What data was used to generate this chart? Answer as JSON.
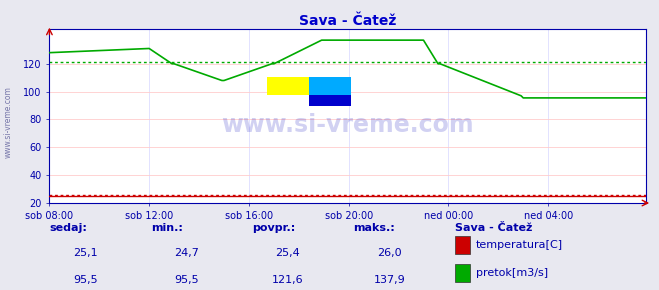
{
  "title": "Sava - Čatež",
  "bg_color": "#e8e8f0",
  "plot_bg_color": "#ffffff",
  "grid_color_h": "#ffcccc",
  "grid_color_v": "#ddddff",
  "ylim": [
    20,
    145
  ],
  "yticks": [
    20,
    40,
    60,
    80,
    100,
    120
  ],
  "xtick_labels": [
    "sob 08:00",
    "sob 12:00",
    "sob 16:00",
    "sob 20:00",
    "ned 00:00",
    "ned 04:00"
  ],
  "xtick_positions": [
    0,
    48,
    96,
    144,
    192,
    240
  ],
  "total_points": 288,
  "temp_color": "#cc0000",
  "flow_color": "#00aa00",
  "avg_line_color": "#00aa00",
  "avg_flow_value": 121.6,
  "avg_temp_value": 25.4,
  "title_color": "#0000cc",
  "axis_color": "#0000aa",
  "label_color": "#0000aa",
  "watermark": "www.si-vreme.com",
  "watermark_color": "#0000bb",
  "watermark_alpha": 0.18,
  "legend_title": "Sava - Čatež",
  "legend_items": [
    {
      "label": "temperatura[C]",
      "color": "#cc0000"
    },
    {
      "label": "pretok[m3/s]",
      "color": "#00aa00"
    }
  ],
  "stats_headers": [
    "sedaj:",
    "min.:",
    "povpr.:",
    "maks.:"
  ],
  "stats_temp": [
    "25,1",
    "24,7",
    "25,4",
    "26,0"
  ],
  "stats_flow": [
    "95,5",
    "95,5",
    "121,6",
    "137,9"
  ],
  "logo_yellow": "#ffff00",
  "logo_cyan": "#00aaff",
  "logo_blue": "#0000cc",
  "sidebar_text": "www.si-vreme.com",
  "sidebar_color": "#7777aa"
}
